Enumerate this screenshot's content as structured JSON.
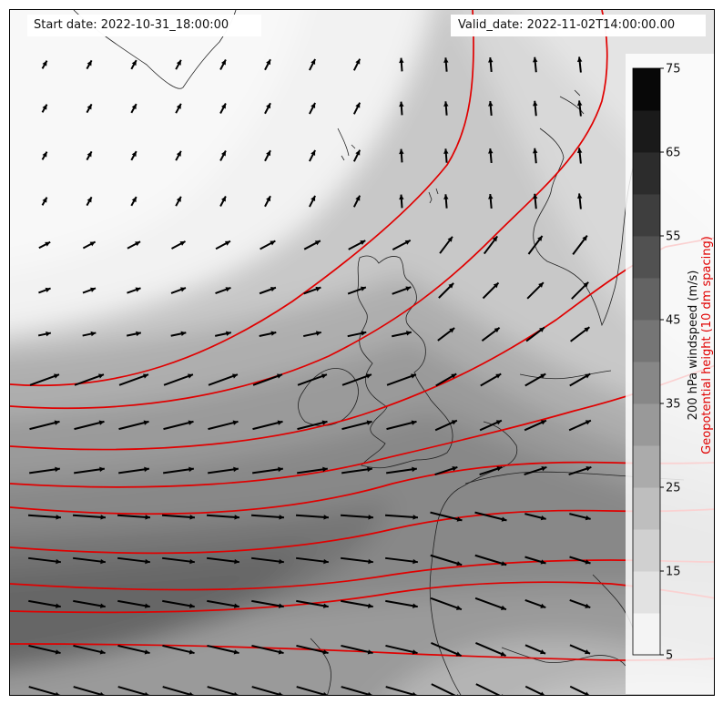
{
  "header": {
    "start_date": "Start date: 2022-10-31_18:00:00",
    "valid_date": "Valid_date: 2022-11-02T14:00:00.00"
  },
  "colorbar": {
    "ticks": [
      "5",
      "15",
      "25",
      "35",
      "45",
      "55",
      "65",
      "75"
    ],
    "levels": [
      5,
      10,
      15,
      20,
      25,
      30,
      35,
      40,
      45,
      50,
      55,
      60,
      65,
      70,
      75
    ],
    "label_windspeed": "200 hPa windspeed (m/s)",
    "label_geopotential": "Geopotential height (10 dm spacing)"
  },
  "colors": {
    "contour": "#e00000",
    "arrow": "#000000",
    "coast": "#222222",
    "label_geopotential": "#e00000"
  },
  "map": {
    "field": "200 hPa windspeed shaded, geopotential height contours, wind vectors",
    "region": "North Atlantic / British Isles"
  }
}
